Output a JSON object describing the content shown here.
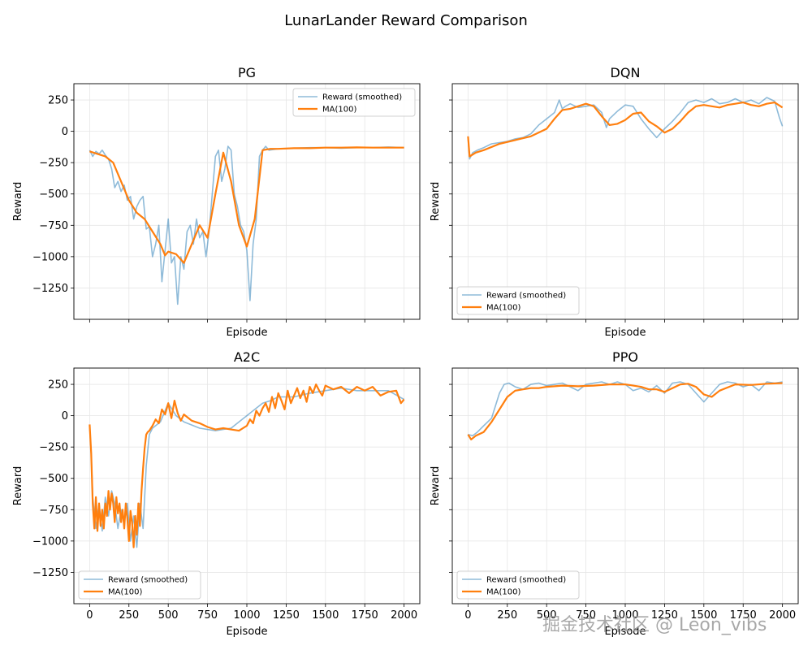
{
  "figure": {
    "title": "LunarLander Reward Comparison",
    "watermark": "掘金技术社区 @ Leon_vibs"
  },
  "colors": {
    "raw": "#1f77b4",
    "ma": "#ff7f0e",
    "grid": "#e6e6e6",
    "legend_border": "#d0d0d0"
  },
  "chart_data": [
    {
      "type": "line",
      "title": "PG",
      "xlabel": "Episode",
      "ylabel": "Reward",
      "xlim": [
        -100,
        2100
      ],
      "ylim": [
        -1500,
        380
      ],
      "xticks": [
        0,
        250,
        500,
        750,
        1000,
        1250,
        1500,
        1750,
        2000
      ],
      "yticks": [
        250,
        0,
        -250,
        -500,
        -750,
        -1000,
        -1250
      ],
      "show_xtick_labels": false,
      "show_ytick_labels": true,
      "grid": true,
      "legend_position": "top-right",
      "series": [
        {
          "name": "Reward (smoothed)",
          "style": "raw",
          "x": [
            0,
            20,
            40,
            60,
            80,
            100,
            120,
            140,
            160,
            180,
            200,
            220,
            240,
            260,
            280,
            300,
            320,
            340,
            360,
            380,
            400,
            420,
            440,
            460,
            480,
            500,
            520,
            540,
            560,
            580,
            600,
            620,
            640,
            660,
            680,
            700,
            720,
            740,
            760,
            780,
            800,
            820,
            840,
            860,
            880,
            900,
            920,
            940,
            960,
            980,
            1000,
            1020,
            1040,
            1060,
            1080,
            1100,
            1120,
            1140,
            1200,
            1300,
            1400,
            1500,
            1600,
            1700,
            1800,
            1900,
            2000
          ],
          "y": [
            -150,
            -200,
            -160,
            -180,
            -150,
            -190,
            -220,
            -300,
            -450,
            -400,
            -480,
            -430,
            -550,
            -520,
            -700,
            -600,
            -550,
            -520,
            -780,
            -760,
            -1000,
            -900,
            -750,
            -1200,
            -950,
            -700,
            -1050,
            -1000,
            -1380,
            -1000,
            -1100,
            -800,
            -750,
            -900,
            -700,
            -850,
            -800,
            -1000,
            -800,
            -500,
            -200,
            -150,
            -400,
            -300,
            -120,
            -150,
            -500,
            -600,
            -750,
            -800,
            -950,
            -1350,
            -900,
            -700,
            -200,
            -150,
            -120,
            -150,
            -140,
            -135,
            -130,
            -130,
            -135,
            -130,
            -130,
            -125,
            -130
          ]
        },
        {
          "name": "MA(100)",
          "style": "ma",
          "x": [
            0,
            50,
            100,
            150,
            200,
            250,
            300,
            350,
            400,
            450,
            480,
            500,
            550,
            600,
            650,
            700,
            750,
            800,
            850,
            900,
            950,
            1000,
            1050,
            1100,
            1150,
            1200,
            1300,
            1400,
            1500,
            1600,
            1700,
            1800,
            1900,
            2000
          ],
          "y": [
            -160,
            -180,
            -200,
            -250,
            -400,
            -550,
            -650,
            -700,
            -800,
            -900,
            -990,
            -960,
            -980,
            -1050,
            -900,
            -750,
            -850,
            -500,
            -170,
            -400,
            -750,
            -920,
            -700,
            -150,
            -140,
            -140,
            -135,
            -135,
            -130,
            -130,
            -128,
            -130,
            -130,
            -130
          ]
        }
      ]
    },
    {
      "type": "line",
      "title": "DQN",
      "xlabel": "Episode",
      "ylabel": "Reward",
      "xlim": [
        -100,
        2100
      ],
      "ylim": [
        -1500,
        380
      ],
      "xticks": [
        0,
        250,
        500,
        750,
        1000,
        1250,
        1500,
        1750,
        2000
      ],
      "yticks": [
        250,
        0,
        -250,
        -500,
        -750,
        -1000,
        -1250
      ],
      "show_xtick_labels": false,
      "show_ytick_labels": false,
      "grid": true,
      "legend_position": "bottom-left",
      "series": [
        {
          "name": "Reward (smoothed)",
          "style": "raw",
          "x": [
            0,
            10,
            30,
            60,
            100,
            150,
            200,
            250,
            300,
            350,
            400,
            450,
            500,
            550,
            580,
            600,
            620,
            650,
            700,
            750,
            800,
            850,
            880,
            900,
            950,
            1000,
            1050,
            1100,
            1150,
            1200,
            1250,
            1300,
            1350,
            1400,
            1450,
            1500,
            1550,
            1600,
            1650,
            1700,
            1750,
            1800,
            1850,
            1900,
            1950,
            1980,
            2000
          ],
          "y": [
            -50,
            -220,
            -170,
            -150,
            -130,
            -100,
            -90,
            -80,
            -60,
            -50,
            -20,
            50,
            100,
            150,
            250,
            180,
            200,
            220,
            190,
            200,
            210,
            150,
            30,
            100,
            160,
            210,
            200,
            100,
            20,
            -50,
            20,
            80,
            150,
            230,
            250,
            230,
            260,
            220,
            230,
            260,
            230,
            250,
            220,
            270,
            240,
            110,
            40
          ]
        },
        {
          "name": "MA(100)",
          "style": "ma",
          "x": [
            0,
            10,
            50,
            100,
            200,
            300,
            400,
            500,
            550,
            600,
            650,
            700,
            750,
            800,
            850,
            900,
            950,
            1000,
            1050,
            1100,
            1150,
            1200,
            1250,
            1300,
            1350,
            1400,
            1450,
            1500,
            1550,
            1600,
            1650,
            1700,
            1750,
            1800,
            1850,
            1900,
            1950,
            2000
          ],
          "y": [
            -40,
            -200,
            -170,
            -150,
            -100,
            -70,
            -40,
            20,
            100,
            170,
            180,
            200,
            220,
            200,
            120,
            50,
            60,
            90,
            140,
            150,
            80,
            40,
            -10,
            20,
            80,
            150,
            200,
            210,
            200,
            190,
            210,
            220,
            230,
            210,
            200,
            220,
            230,
            190
          ]
        }
      ]
    },
    {
      "type": "line",
      "title": "A2C",
      "xlabel": "Episode",
      "ylabel": "Reward",
      "xlim": [
        -100,
        2100
      ],
      "ylim": [
        -1500,
        380
      ],
      "xticks": [
        0,
        250,
        500,
        750,
        1000,
        1250,
        1500,
        1750,
        2000
      ],
      "yticks": [
        250,
        0,
        -250,
        -500,
        -750,
        -1000,
        -1250
      ],
      "show_xtick_labels": true,
      "show_ytick_labels": true,
      "grid": true,
      "legend_position": "bottom-left",
      "series": [
        {
          "name": "Reward (smoothed)",
          "style": "raw",
          "x": [
            0,
            10,
            20,
            40,
            60,
            80,
            100,
            120,
            140,
            160,
            180,
            200,
            220,
            240,
            260,
            280,
            300,
            320,
            340,
            360,
            380,
            400,
            450,
            500,
            550,
            600,
            700,
            800,
            900,
            950,
            1000,
            1050,
            1100,
            1150,
            1200,
            1300,
            1400,
            1500,
            1600,
            1700,
            1800,
            1900,
            2000
          ],
          "y": [
            -80,
            -300,
            -650,
            -900,
            -700,
            -920,
            -650,
            -800,
            -600,
            -700,
            -900,
            -750,
            -850,
            -700,
            -1000,
            -800,
            -1050,
            -700,
            -900,
            -400,
            -150,
            -100,
            -50,
            100,
            0,
            -50,
            -100,
            -120,
            -100,
            -50,
            0,
            50,
            100,
            120,
            150,
            150,
            180,
            200,
            220,
            200,
            200,
            200,
            130
          ]
        },
        {
          "name": "MA(100)",
          "style": "ma",
          "x": [
            0,
            10,
            20,
            30,
            40,
            50,
            60,
            70,
            80,
            90,
            100,
            110,
            120,
            130,
            140,
            150,
            160,
            170,
            180,
            190,
            200,
            210,
            220,
            230,
            240,
            250,
            260,
            270,
            280,
            290,
            300,
            310,
            320,
            330,
            340,
            350,
            360,
            370,
            380,
            400,
            420,
            440,
            460,
            480,
            500,
            520,
            540,
            560,
            580,
            600,
            650,
            700,
            750,
            800,
            850,
            900,
            950,
            1000,
            1020,
            1040,
            1060,
            1080,
            1100,
            1120,
            1140,
            1160,
            1180,
            1200,
            1220,
            1240,
            1260,
            1280,
            1300,
            1320,
            1340,
            1360,
            1380,
            1400,
            1420,
            1440,
            1460,
            1480,
            1500,
            1550,
            1600,
            1650,
            1700,
            1750,
            1800,
            1850,
            1900,
            1950,
            1980,
            2000
          ],
          "y": [
            -70,
            -300,
            -700,
            -900,
            -650,
            -920,
            -700,
            -880,
            -750,
            -900,
            -700,
            -800,
            -600,
            -750,
            -620,
            -700,
            -850,
            -650,
            -780,
            -700,
            -850,
            -750,
            -900,
            -700,
            -820,
            -1000,
            -760,
            -850,
            -1050,
            -800,
            -950,
            -700,
            -880,
            -600,
            -420,
            -260,
            -150,
            -130,
            -120,
            -80,
            -30,
            -60,
            50,
            10,
            100,
            -20,
            120,
            20,
            -40,
            10,
            -40,
            -60,
            -90,
            -110,
            -100,
            -110,
            -120,
            -80,
            -30,
            -60,
            40,
            0,
            60,
            100,
            30,
            150,
            60,
            180,
            120,
            50,
            200,
            100,
            160,
            220,
            140,
            200,
            110,
            230,
            180,
            250,
            200,
            160,
            240,
            210,
            230,
            180,
            230,
            200,
            230,
            160,
            190,
            200,
            100,
            130
          ]
        }
      ]
    },
    {
      "type": "line",
      "title": "PPO",
      "xlabel": "Episode",
      "ylabel": "Reward",
      "xlim": [
        -100,
        2100
      ],
      "ylim": [
        -1500,
        380
      ],
      "xticks": [
        0,
        250,
        500,
        750,
        1000,
        1250,
        1500,
        1750,
        2000
      ],
      "yticks": [
        250,
        0,
        -250,
        -500,
        -750,
        -1000,
        -1250
      ],
      "show_xtick_labels": true,
      "show_ytick_labels": false,
      "grid": true,
      "legend_position": "bottom-left",
      "series": [
        {
          "name": "Reward (smoothed)",
          "style": "raw",
          "x": [
            0,
            30,
            60,
            100,
            150,
            180,
            200,
            230,
            260,
            300,
            350,
            400,
            450,
            500,
            550,
            600,
            650,
            700,
            750,
            800,
            850,
            900,
            950,
            1000,
            1050,
            1100,
            1150,
            1200,
            1250,
            1300,
            1350,
            1400,
            1450,
            1500,
            1550,
            1600,
            1650,
            1700,
            1750,
            1800,
            1850,
            1900,
            1950,
            2000
          ],
          "y": [
            -150,
            -160,
            -130,
            -80,
            -20,
            100,
            180,
            250,
            260,
            230,
            210,
            250,
            260,
            240,
            250,
            260,
            230,
            200,
            250,
            260,
            270,
            250,
            270,
            250,
            200,
            220,
            190,
            240,
            180,
            260,
            270,
            250,
            180,
            110,
            180,
            250,
            270,
            260,
            230,
            250,
            200,
            270,
            260,
            270
          ]
        },
        {
          "name": "MA(100)",
          "style": "ma",
          "x": [
            0,
            20,
            50,
            100,
            150,
            200,
            250,
            300,
            350,
            400,
            450,
            500,
            600,
            700,
            800,
            900,
            1000,
            1100,
            1150,
            1200,
            1250,
            1300,
            1350,
            1400,
            1450,
            1500,
            1550,
            1600,
            1700,
            1800,
            1900,
            2000
          ],
          "y": [
            -150,
            -190,
            -160,
            -130,
            -50,
            50,
            150,
            200,
            210,
            220,
            220,
            230,
            240,
            235,
            240,
            250,
            250,
            230,
            210,
            210,
            190,
            220,
            250,
            255,
            230,
            170,
            150,
            200,
            250,
            245,
            255,
            260
          ]
        }
      ]
    }
  ]
}
